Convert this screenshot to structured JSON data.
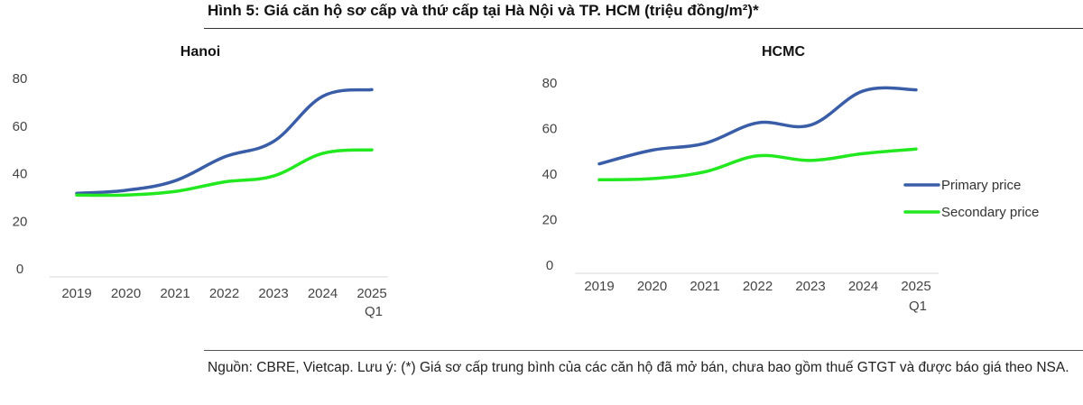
{
  "figure": {
    "title": "Hình 5: Giá căn hộ sơ cấp và thứ cấp tại Hà Nội và TP. HCM (triệu đồng/m²)*",
    "source_note": "Nguồn: CBRE, Vietcap. Lưu ý: (*) Giá sơ cấp trung bình của các căn hộ đã mở bán, chưa bao gồm thuế GTGT và được báo giá theo NSA."
  },
  "colors": {
    "primary": "#3A5DA8",
    "secondary": "#22E81F",
    "axis": "#D9D9D9"
  },
  "chart_data": [
    {
      "type": "line",
      "title": "Hanoi",
      "categories": [
        "2019",
        "2020",
        "2021",
        "2022",
        "2023",
        "2024",
        "2025"
      ],
      "category_sublabels": [
        "",
        "",
        "",
        "",
        "",
        "",
        "Q1"
      ],
      "yticks": [
        "0",
        "20",
        "40",
        "60",
        "80"
      ],
      "ylim": [
        0,
        80
      ],
      "grid": false,
      "legend": "none",
      "series": [
        {
          "name": "Primary price",
          "values": [
            31.7,
            33.0,
            37.0,
            47.0,
            53.5,
            72.5,
            75.3
          ]
        },
        {
          "name": "Secondary price",
          "values": [
            31.0,
            31.0,
            32.5,
            36.5,
            39.0,
            48.5,
            50.0
          ]
        }
      ]
    },
    {
      "type": "line",
      "title": "HCMC",
      "categories": [
        "2019",
        "2020",
        "2021",
        "2022",
        "2023",
        "2024",
        "2025"
      ],
      "category_sublabels": [
        "",
        "",
        "",
        "",
        "",
        "",
        "Q1"
      ],
      "yticks": [
        "0",
        "20",
        "40",
        "60",
        "80"
      ],
      "ylim": [
        0,
        80
      ],
      "grid": false,
      "legend": "right",
      "series": [
        {
          "name": "Primary price",
          "values": [
            44.5,
            50.5,
            53.5,
            62.5,
            61.5,
            76.5,
            77.0
          ]
        },
        {
          "name": "Secondary price",
          "values": [
            37.5,
            38.0,
            41.0,
            48.0,
            46.0,
            49.0,
            51.0
          ]
        }
      ]
    }
  ]
}
